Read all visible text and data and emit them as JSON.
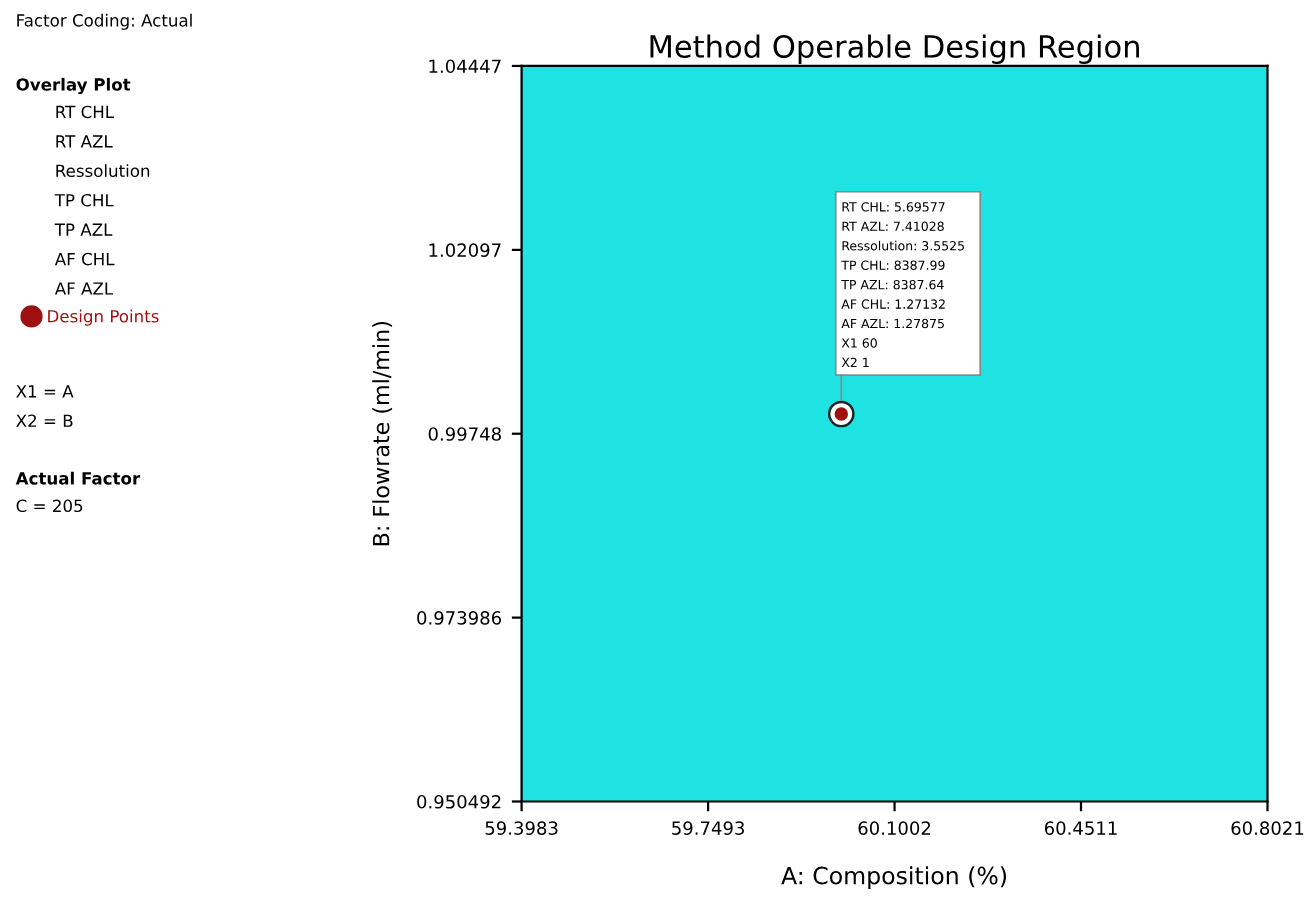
{
  "chart_data": {
    "type": "scatter",
    "title": "Method Operable Design Region",
    "xlabel": "A: Composition (%)",
    "ylabel": "B: Flowrate (ml/min)",
    "xlim": [
      59.3983,
      60.8021
    ],
    "xticks": [
      59.3983,
      59.7493,
      60.1002,
      60.4511,
      60.8021
    ],
    "ylim": [
      0.950492,
      1.04447
    ],
    "yticks": [
      0.950492,
      0.973986,
      0.99748,
      1.02097,
      1.04447
    ],
    "series": [
      {
        "name": "Design Points",
        "color": "#a01010",
        "x": [
          60
        ],
        "values": [
          1
        ]
      }
    ],
    "bands": [
      {
        "axis": "x",
        "from": 59.3983,
        "to": 60.8021,
        "color": "#1fe3e3"
      }
    ],
    "legend": "left",
    "grid": false,
    "marker": "circle",
    "annotations": [
      "Factor Coding: Actual",
      "Overlay Plot",
      "RT CHL\nRT AZL\nRessolution\nTP CHL\nTP AZL\nAF CHL\nAF AZL",
      "X1 = A\nX2 = B",
      "Actual Factor",
      "C = 205",
      "RT CHL: 5.69577",
      "RT AZL: 7.41028",
      "Ressolution: 3.5525",
      "TP CHL: 8387.99",
      "TP AZL: 8387.64",
      "AF CHL: 1.27132",
      "AF AZL: 1.27875",
      "X1 60",
      "X2 1"
    ]
  }
}
